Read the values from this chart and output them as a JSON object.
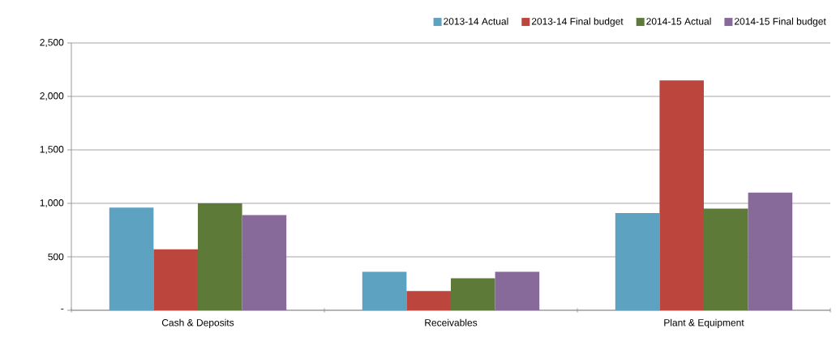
{
  "chart_data": {
    "type": "bar",
    "categories": [
      "Cash & Deposits",
      "Receivables",
      "Plant & Equipment"
    ],
    "series": [
      {
        "name": "2013-14 Actual",
        "color": "#5ea2c2",
        "values": [
          960,
          360,
          910
        ]
      },
      {
        "name": "2013-14 Final budget",
        "color": "#bc463e",
        "values": [
          570,
          180,
          2150
        ]
      },
      {
        "name": "2014-15 Actual",
        "color": "#5d7a39",
        "values": [
          1000,
          300,
          950
        ]
      },
      {
        "name": "2014-15 Final budget",
        "color": "#876a99",
        "values": [
          890,
          360,
          1100
        ]
      }
    ],
    "ylim": [
      0,
      2500
    ],
    "yticks": [
      {
        "value": 0,
        "label": "-"
      },
      500,
      {
        "value": 1000,
        "label": "1,000"
      },
      {
        "value": 1500,
        "label": "1,500"
      },
      {
        "value": 2000,
        "label": "2,000"
      },
      {
        "value": 2500,
        "label": "2,500"
      }
    ],
    "grid": "y",
    "legend": "top right"
  }
}
